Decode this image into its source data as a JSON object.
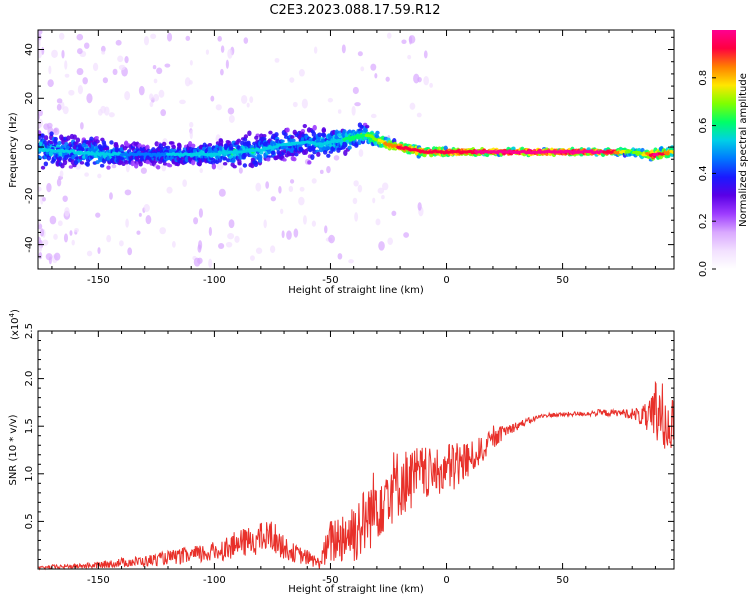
{
  "title": "C2E3.2023.088.17.59.R12",
  "colors": {
    "snr_line": "#e8302a",
    "colormap": [
      "#ffffff",
      "#f2e0ff",
      "#d9a8ff",
      "#9e3cff",
      "#5a00e6",
      "#1a1aff",
      "#0078ff",
      "#00d0e6",
      "#00ff66",
      "#7fff00",
      "#ffe600",
      "#ff8000",
      "#ff0040",
      "#ff0090"
    ]
  },
  "chart_data": [
    {
      "type": "heatmap",
      "xlabel": "Height of straight line (km)",
      "ylabel": "Frequency (Hz)",
      "xlim": [
        -176,
        98
      ],
      "ylim": [
        -50,
        48
      ],
      "xticks": [
        -150,
        -100,
        -50,
        0,
        50
      ],
      "yticks": [
        -40,
        -20,
        0,
        20,
        40
      ],
      "colorbar": {
        "label": "Normalized spectral amplitude",
        "range": [
          0,
          1
        ],
        "ticks": [
          "0.0",
          "0.2",
          "0.4",
          "0.6",
          "0.8"
        ]
      },
      "ridge": {
        "x": [
          -176,
          -160,
          -150,
          -140,
          -130,
          -120,
          -110,
          -100,
          -90,
          -80,
          -70,
          -60,
          -55,
          -50,
          -40,
          -35,
          -30,
          -25,
          -20,
          -10,
          0,
          10,
          20,
          30,
          40,
          50,
          60,
          70,
          80,
          85,
          90,
          98
        ],
        "y": [
          -1,
          -2,
          -3,
          -3,
          -3,
          -3,
          -3,
          -3,
          -2,
          -1,
          1,
          2,
          1,
          2,
          4,
          5,
          3,
          1,
          0,
          -2,
          -2,
          -2,
          -2,
          -2,
          -2,
          -2,
          -2,
          -2,
          -2,
          -3,
          -3,
          -2
        ],
        "intensity": [
          0.5,
          0.45,
          0.5,
          0.45,
          0.4,
          0.45,
          0.45,
          0.5,
          0.5,
          0.5,
          0.45,
          0.45,
          0.5,
          0.5,
          0.55,
          0.6,
          0.65,
          0.8,
          0.85,
          0.85,
          0.9,
          0.9,
          0.95,
          0.95,
          0.95,
          0.95,
          0.95,
          0.9,
          0.6,
          0.7,
          0.95,
          0.7
        ],
        "spread_hz": [
          8,
          7,
          6,
          5,
          5,
          5,
          5,
          5,
          6,
          6,
          7,
          7,
          6,
          6,
          5,
          4,
          3,
          2,
          2,
          2,
          1.5,
          1.2,
          1.2,
          1.2,
          1.2,
          1.2,
          1.2,
          1.2,
          1.5,
          2,
          2,
          2
        ]
      }
    },
    {
      "type": "line",
      "xlabel": "Height of straight line (km)",
      "ylabel": "SNR (10 * v/v)",
      "scale_label": "(x10",
      "scale_exp": "4",
      "scale_close": ")",
      "xlim": [
        -176,
        98
      ],
      "ylim": [
        0,
        2.5
      ],
      "xticks": [
        -150,
        -100,
        -50,
        0,
        50
      ],
      "yticks": [
        0.5,
        1.0,
        1.5,
        2.0,
        2.5
      ],
      "ytick_labels": [
        "0.5",
        "1.0",
        "1.5",
        "2.0",
        "2.5"
      ],
      "series": [
        {
          "x": [
            -176,
            -170,
            -160,
            -150,
            -140,
            -130,
            -120,
            -110,
            -100,
            -90,
            -80,
            -75,
            -70,
            -65,
            -60,
            -55,
            -50,
            -45,
            -40,
            -35,
            -30,
            -25,
            -20,
            -15,
            -10,
            -5,
            0,
            5,
            10,
            15,
            20,
            25,
            30,
            35,
            40,
            45,
            50,
            55,
            60,
            65,
            70,
            75,
            80,
            85,
            88,
            90,
            92,
            95,
            98
          ],
          "y": [
            0.01,
            0.02,
            0.03,
            0.04,
            0.07,
            0.08,
            0.12,
            0.14,
            0.18,
            0.26,
            0.32,
            0.35,
            0.22,
            0.16,
            0.12,
            0.06,
            0.28,
            0.35,
            0.4,
            0.5,
            0.7,
            0.85,
            0.9,
            0.95,
            1.0,
            1.0,
            1.05,
            1.1,
            1.15,
            1.25,
            1.35,
            1.45,
            1.5,
            1.55,
            1.6,
            1.62,
            1.62,
            1.63,
            1.63,
            1.64,
            1.64,
            1.64,
            1.63,
            1.6,
            1.55,
            1.6,
            1.7,
            1.58,
            1.55
          ],
          "noise": [
            0.01,
            0.02,
            0.02,
            0.03,
            0.04,
            0.05,
            0.06,
            0.08,
            0.09,
            0.12,
            0.14,
            0.15,
            0.1,
            0.08,
            0.07,
            0.05,
            0.2,
            0.25,
            0.3,
            0.3,
            0.35,
            0.35,
            0.3,
            0.28,
            0.25,
            0.2,
            0.22,
            0.25,
            0.15,
            0.12,
            0.08,
            0.06,
            0.04,
            0.03,
            0.02,
            0.02,
            0.02,
            0.02,
            0.02,
            0.03,
            0.03,
            0.03,
            0.05,
            0.1,
            0.2,
            0.35,
            0.4,
            0.3,
            0.2
          ]
        }
      ]
    }
  ]
}
